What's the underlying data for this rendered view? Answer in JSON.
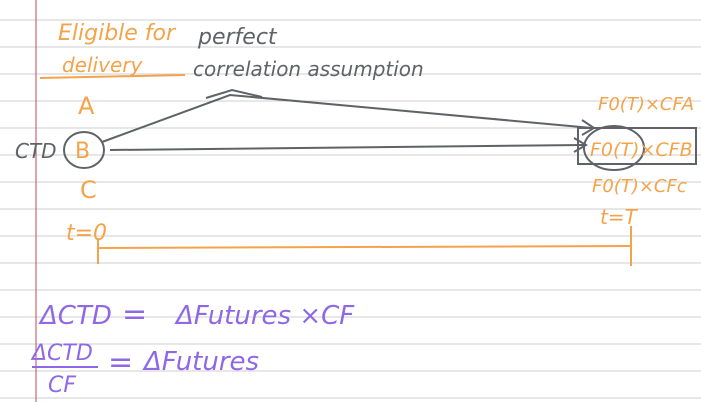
{
  "colors": {
    "orange": "#F5A34A",
    "gray": "#5F6368",
    "purple": "#8E68E6",
    "rule": "#CFCFCF",
    "margin": "#C0485E"
  },
  "top_left": {
    "line1": "Eligible for",
    "line2": "delivery"
  },
  "note": {
    "line1": "perfect",
    "line2": "correlation assumption"
  },
  "bonds": {
    "a": "A",
    "b": "B",
    "c": "C",
    "ctd": "CTD"
  },
  "time": {
    "start": "t=0",
    "end": "t=T"
  },
  "right_terms": {
    "a": "F0(T)×CFA",
    "b": "F0(T)×CFB",
    "c": "F0(T)×CFc"
  },
  "equations": {
    "eq1_left": "ΔCTD",
    "eq1_mid": "=",
    "eq1_right": "ΔFutures ×CF",
    "eq2_num": "ΔCTD",
    "eq2_den": "CF",
    "eq2_mid": "=",
    "eq2_right": "ΔFutures"
  }
}
